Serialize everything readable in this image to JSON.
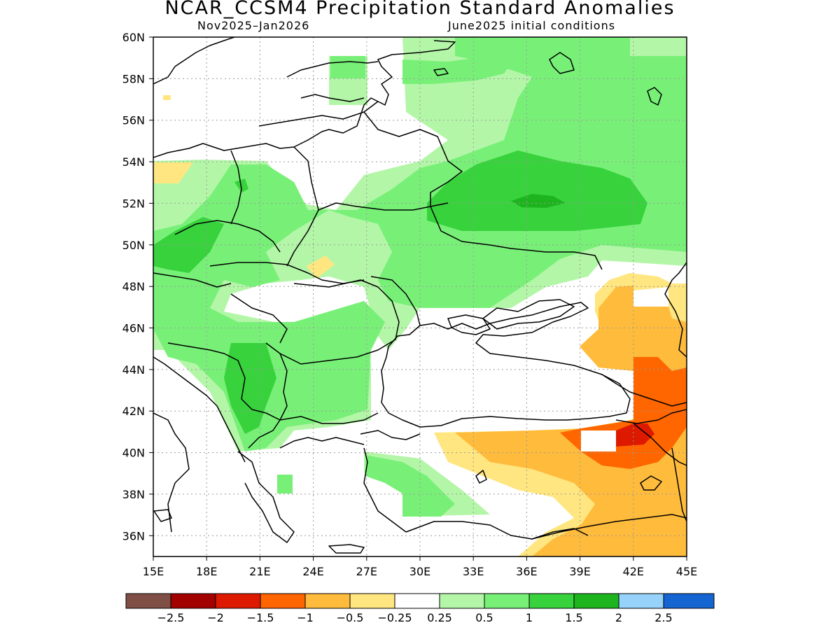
{
  "header": {
    "title": "NCAR_CCSM4 Precipitation Standard Anomalies",
    "period": "Nov2025–Jan2026",
    "init": "June2025 initial conditions"
  },
  "axes": {
    "x_labels": [
      "15E",
      "18E",
      "21E",
      "24E",
      "27E",
      "30E",
      "33E",
      "36E",
      "39E",
      "42E",
      "45E"
    ],
    "y_labels": [
      "60N",
      "58N",
      "56N",
      "54N",
      "52N",
      "50N",
      "48N",
      "46N",
      "44N",
      "42N",
      "40N",
      "38N",
      "36N"
    ],
    "lon_range": [
      15,
      45
    ],
    "lat_range": [
      35,
      60
    ]
  },
  "colorbar": {
    "colors": [
      "#7f4f46",
      "#a30000",
      "#dd1a00",
      "#ff6600",
      "#ffbb3c",
      "#ffe680",
      "#ffffff",
      "#b4f6a8",
      "#78f078",
      "#37d23c",
      "#1eb41e",
      "#96d2fa",
      "#1464d2"
    ],
    "labels": [
      "−2.5",
      "−2",
      "−1.5",
      "−1",
      "−0.5",
      "−0.25",
      "0.25",
      "0.5",
      "1",
      "1.5",
      "2",
      "2.5"
    ]
  }
}
